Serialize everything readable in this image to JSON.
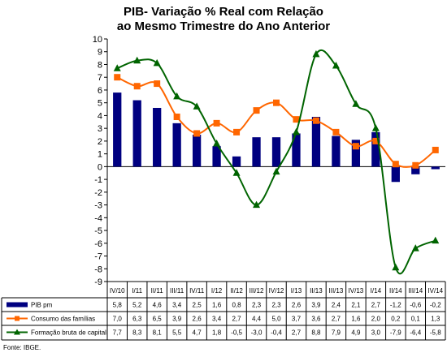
{
  "chart_data": {
    "type": "bar+line",
    "title_lines": [
      "PIB- Variação % Real com Relação",
      "ao Mesmo Trimestre do Ano Anterior"
    ],
    "categories": [
      "IV/10",
      "I/11",
      "II/11",
      "III/11",
      "IV/11",
      "I/12",
      "II/12",
      "III/12",
      "IV/12",
      "I/13",
      "II/13",
      "III/13",
      "IV/13",
      "I/14",
      "II/14",
      "III/14",
      "IV/14"
    ],
    "ylim": [
      -9,
      10
    ],
    "yticks": [
      "10",
      "9",
      "8",
      "7",
      "6",
      "5",
      "4",
      "3",
      "2",
      "1",
      "0",
      "-1",
      "-2",
      "-3",
      "-4",
      "-5",
      "-6",
      "-7",
      "-8",
      "-9"
    ],
    "grid": false,
    "legend": "data table below chart",
    "series": [
      {
        "name": "PIB pm",
        "kind": "bar",
        "color": "#000080",
        "values": [
          5.8,
          5.2,
          4.6,
          3.4,
          2.5,
          1.6,
          0.8,
          2.3,
          2.3,
          2.6,
          3.9,
          2.4,
          2.1,
          2.7,
          -1.2,
          -0.6,
          -0.2
        ],
        "labels": [
          "5,8",
          "5,2",
          "4,6",
          "3,4",
          "2,5",
          "1,6",
          "0,8",
          "2,3",
          "2,3",
          "2,6",
          "3,9",
          "2,4",
          "2,1",
          "2,7",
          "-1,2",
          "-0,6",
          "-0,2"
        ]
      },
      {
        "name": "Consumo das famílias",
        "kind": "line",
        "marker": "square",
        "color": "#ff6600",
        "values": [
          7.0,
          6.3,
          6.5,
          3.9,
          2.6,
          3.4,
          2.7,
          4.4,
          5.0,
          3.7,
          3.6,
          2.7,
          1.6,
          2.0,
          0.2,
          0.1,
          1.3
        ],
        "labels": [
          "7,0",
          "6,3",
          "6,5",
          "3,9",
          "2,6",
          "3,4",
          "2,7",
          "4,4",
          "5,0",
          "3,7",
          "3,6",
          "2,7",
          "1,6",
          "2,0",
          "0,2",
          "0,1",
          "1,3"
        ]
      },
      {
        "name": "Formação bruta de capital",
        "kind": "line",
        "marker": "triangle",
        "color": "#006400",
        "values": [
          7.7,
          8.3,
          8.1,
          5.5,
          4.7,
          1.8,
          -0.5,
          -3.0,
          -0.4,
          2.7,
          8.8,
          7.9,
          4.9,
          3.0,
          -7.9,
          -6.4,
          -5.8
        ],
        "labels": [
          "7,7",
          "8,3",
          "8,1",
          "5,5",
          "4,7",
          "1,8",
          "-0,5",
          "-3,0",
          "-0,4",
          "2,7",
          "8,8",
          "7,9",
          "4,9",
          "3,0",
          "-7,9",
          "-6,4",
          "-5,8"
        ]
      }
    ]
  },
  "source": "Fonte: IBGE."
}
